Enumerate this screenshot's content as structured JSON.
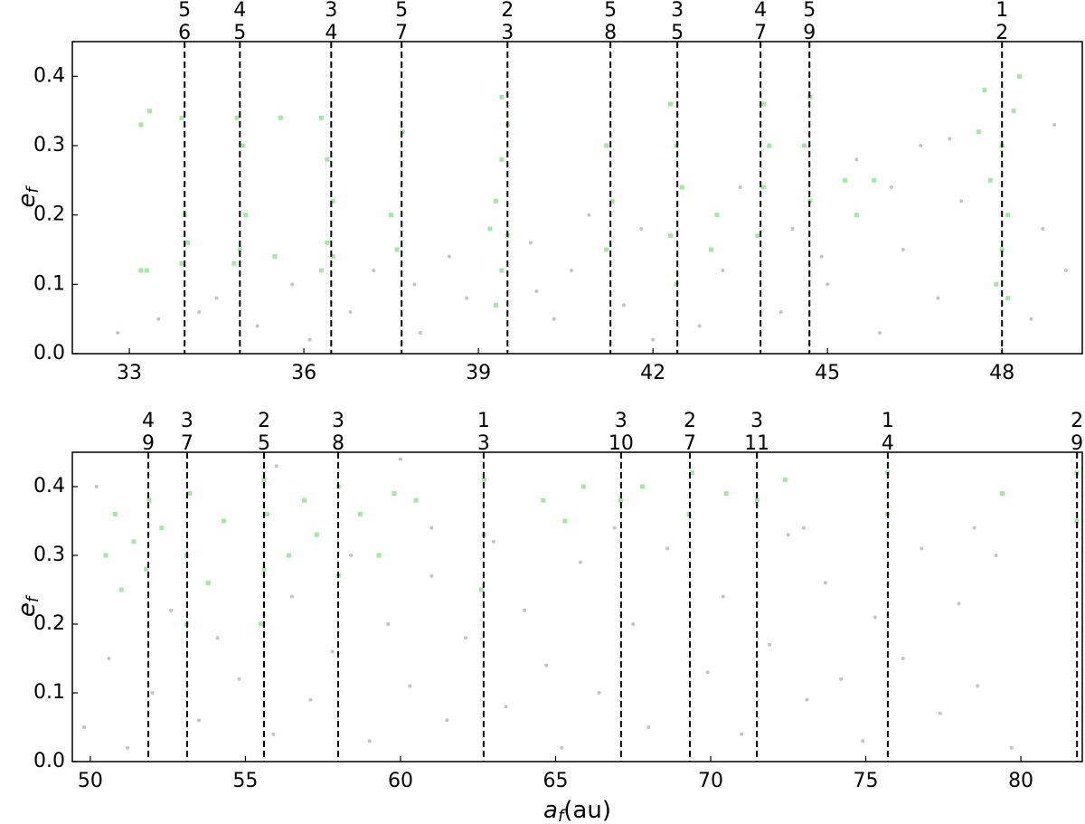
{
  "chart_data": [
    {
      "type": "scatter",
      "ylabel": "e",
      "ylabel_subscript": "f",
      "xlim": [
        32.02,
        49.38
      ],
      "ylim": [
        0,
        0.45
      ],
      "xticks": [
        33,
        36,
        39,
        42,
        45,
        48
      ],
      "yticks": [
        {
          "value": 0,
          "label": "0.0"
        },
        {
          "value": 0.1,
          "label": "0.1"
        },
        {
          "value": 0.2,
          "label": "0.2"
        },
        {
          "value": 0.3,
          "label": "0.3"
        },
        {
          "value": 0.4,
          "label": "0.4"
        }
      ],
      "resonances": [
        {
          "x": 33.95,
          "num": 5,
          "den": 6
        },
        {
          "x": 34.9,
          "num": 4,
          "den": 5
        },
        {
          "x": 36.47,
          "num": 3,
          "den": 4
        },
        {
          "x": 37.68,
          "num": 5,
          "den": 7
        },
        {
          "x": 39.5,
          "num": 2,
          "den": 3
        },
        {
          "x": 41.27,
          "num": 5,
          "den": 8
        },
        {
          "x": 42.42,
          "num": 3,
          "den": 5
        },
        {
          "x": 43.85,
          "num": 4,
          "den": 7
        },
        {
          "x": 44.69,
          "num": 5,
          "den": 9
        },
        {
          "x": 48.0,
          "num": 1,
          "den": 2
        }
      ],
      "series": [
        {
          "color": "#555555",
          "marker": "circle",
          "x": [
            32.8,
            33.5,
            34.5,
            35.2,
            35.8,
            36.8,
            37.2,
            38.0,
            38.5,
            38.8,
            39.9,
            40.3,
            40.6,
            40.9,
            41.5,
            41.8,
            42.8,
            43.2,
            43.5,
            44.2,
            44.4,
            45.0,
            45.5,
            45.9,
            46.3,
            46.6,
            46.9,
            47.3,
            48.5,
            48.7,
            48.9,
            49.1,
            47.1,
            46.1,
            44.9,
            42.0,
            40.0,
            37.9,
            36.1,
            34.2
          ],
          "values": [
            0.03,
            0.05,
            0.08,
            0.04,
            0.1,
            0.06,
            0.12,
            0.03,
            0.14,
            0.08,
            0.16,
            0.05,
            0.12,
            0.2,
            0.07,
            0.18,
            0.04,
            0.12,
            0.24,
            0.06,
            0.18,
            0.1,
            0.28,
            0.03,
            0.15,
            0.3,
            0.08,
            0.22,
            0.05,
            0.18,
            0.33,
            0.12,
            0.31,
            0.24,
            0.14,
            0.02,
            0.09,
            0.1,
            0.02,
            0.06
          ]
        },
        {
          "color": "#33cc33",
          "marker": "square",
          "x": [
            33.3,
            33.2,
            33.35,
            33.2,
            33.9,
            34.0,
            33.95,
            33.9,
            34.8,
            34.9,
            35.0,
            34.95,
            34.85,
            35.5,
            35.6,
            36.3,
            36.4,
            36.5,
            36.4,
            36.3,
            36.5,
            37.6,
            37.5,
            37.7,
            39.3,
            39.4,
            39.5,
            39.3,
            39.4,
            39.5,
            39.4,
            39.2,
            41.2,
            41.3,
            41.2,
            42.4,
            42.3,
            42.5,
            42.4,
            42.3,
            43.1,
            43.0,
            43.8,
            43.9,
            44.0,
            43.9,
            44.7,
            44.6,
            44.7,
            45.3,
            45.5,
            45.8,
            47.9,
            48.0,
            48.1,
            47.8,
            48.0,
            48.2,
            47.7,
            48.3,
            47.6,
            48.1
          ],
          "values": [
            0.12,
            0.12,
            0.35,
            0.33,
            0.13,
            0.16,
            0.2,
            0.34,
            0.13,
            0.15,
            0.2,
            0.3,
            0.34,
            0.14,
            0.34,
            0.12,
            0.16,
            0.22,
            0.28,
            0.34,
            0.14,
            0.15,
            0.2,
            0.32,
            0.07,
            0.12,
            0.17,
            0.22,
            0.28,
            0.33,
            0.37,
            0.18,
            0.15,
            0.22,
            0.3,
            0.1,
            0.17,
            0.24,
            0.3,
            0.36,
            0.2,
            0.15,
            0.17,
            0.24,
            0.3,
            0.36,
            0.22,
            0.3,
            0.37,
            0.25,
            0.2,
            0.25,
            0.1,
            0.15,
            0.2,
            0.25,
            0.3,
            0.35,
            0.38,
            0.4,
            0.32,
            0.08
          ]
        }
      ]
    },
    {
      "type": "scatter",
      "ylabel": "e",
      "ylabel_subscript": "f",
      "xlabel": "a",
      "xlabel_subscript": "f",
      "xlabel_unit": "(au)",
      "xlim": [
        49.42,
        81.98
      ],
      "ylim": [
        0,
        0.45
      ],
      "xticks": [
        50,
        55,
        60,
        65,
        70,
        75,
        80
      ],
      "yticks": [
        {
          "value": 0,
          "label": "0.0"
        },
        {
          "value": 0.1,
          "label": "0.1"
        },
        {
          "value": 0.2,
          "label": "0.2"
        },
        {
          "value": 0.3,
          "label": "0.3"
        },
        {
          "value": 0.4,
          "label": "0.4"
        }
      ],
      "resonances": [
        {
          "x": 51.87,
          "num": 4,
          "den": 9
        },
        {
          "x": 53.12,
          "num": 3,
          "den": 7
        },
        {
          "x": 55.6,
          "num": 2,
          "den": 5
        },
        {
          "x": 57.99,
          "num": 3,
          "den": 8
        },
        {
          "x": 62.68,
          "num": 1,
          "den": 3
        },
        {
          "x": 67.11,
          "num": 3,
          "den": 10
        },
        {
          "x": 69.33,
          "num": 2,
          "den": 7
        },
        {
          "x": 71.49,
          "num": 3,
          "den": 11
        },
        {
          "x": 75.71,
          "num": 1,
          "den": 4
        },
        {
          "x": 81.81,
          "num": 2,
          "den": 9
        }
      ],
      "series": [
        {
          "color": "#555555",
          "marker": "circle",
          "x": [
            49.8,
            50.6,
            51.2,
            52.0,
            52.6,
            53.5,
            54.1,
            54.8,
            55.9,
            56.5,
            57.1,
            57.8,
            58.4,
            59.0,
            59.6,
            60.3,
            61.0,
            61.5,
            62.1,
            63.0,
            63.4,
            64.0,
            64.7,
            65.2,
            65.8,
            66.4,
            67.5,
            68.0,
            68.6,
            69.9,
            70.4,
            71.0,
            71.9,
            72.5,
            73.1,
            73.7,
            74.2,
            74.9,
            75.3,
            76.2,
            76.8,
            77.4,
            78.0,
            78.6,
            79.2,
            79.7,
            50.2,
            56.0,
            60.0,
            61.0,
            66.9,
            73.0,
            78.5
          ],
          "values": [
            0.05,
            0.15,
            0.02,
            0.1,
            0.22,
            0.06,
            0.18,
            0.12,
            0.04,
            0.24,
            0.09,
            0.16,
            0.3,
            0.03,
            0.2,
            0.11,
            0.27,
            0.06,
            0.18,
            0.32,
            0.08,
            0.22,
            0.14,
            0.02,
            0.29,
            0.1,
            0.2,
            0.05,
            0.31,
            0.13,
            0.24,
            0.04,
            0.17,
            0.33,
            0.09,
            0.26,
            0.12,
            0.03,
            0.21,
            0.15,
            0.31,
            0.07,
            0.23,
            0.11,
            0.3,
            0.02,
            0.4,
            0.43,
            0.44,
            0.34,
            0.34,
            0.34,
            0.34
          ]
        },
        {
          "color": "#33cc33",
          "marker": "square",
          "x": [
            50.5,
            50.8,
            51.0,
            51.4,
            51.9,
            51.8,
            52.3,
            53.1,
            53.1,
            53.2,
            53.8,
            54.3,
            55.5,
            55.6,
            55.7,
            55.6,
            56.4,
            56.9,
            57.3,
            58.0,
            58.0,
            58.7,
            59.3,
            59.8,
            60.5,
            62.6,
            62.7,
            62.7,
            64.6,
            65.3,
            65.9,
            67.1,
            67.8,
            69.3,
            69.4,
            70.5,
            71.5,
            72.4,
            75.7,
            75.7,
            79.4,
            81.8,
            81.8
          ],
          "values": [
            0.3,
            0.36,
            0.25,
            0.32,
            0.38,
            0.28,
            0.34,
            0.2,
            0.3,
            0.39,
            0.26,
            0.35,
            0.2,
            0.28,
            0.36,
            0.41,
            0.3,
            0.38,
            0.33,
            0.27,
            0.4,
            0.36,
            0.3,
            0.39,
            0.38,
            0.25,
            0.33,
            0.41,
            0.38,
            0.35,
            0.4,
            0.38,
            0.4,
            0.36,
            0.42,
            0.39,
            0.38,
            0.41,
            0.36,
            0.42,
            0.39,
            0.35,
            0.42
          ]
        }
      ]
    }
  ]
}
